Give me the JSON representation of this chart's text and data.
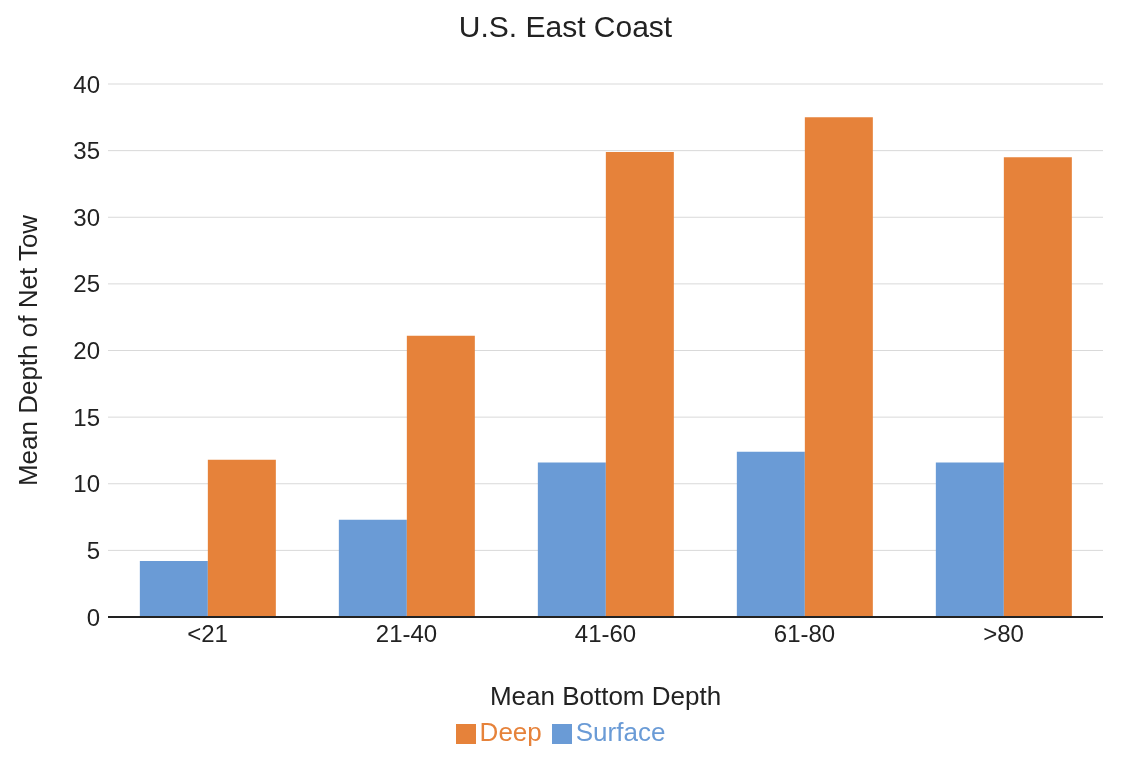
{
  "chart_data": {
    "type": "bar",
    "title": "U.S. East Coast",
    "xlabel": "Mean Bottom Depth",
    "ylabel": "Mean Depth of Net Tow",
    "categories": [
      "<21",
      "21-40",
      "41-60",
      "61-80",
      ">80"
    ],
    "series": [
      {
        "name": "Surface",
        "color": "#6a9bd6",
        "values": [
          4.2,
          7.3,
          11.6,
          12.4,
          11.6
        ]
      },
      {
        "name": "Deep",
        "color": "#e6823a",
        "values": [
          11.8,
          21.1,
          34.9,
          37.5,
          34.5
        ]
      }
    ],
    "ylim": [
      0,
      40
    ],
    "yticks": [
      0,
      5,
      10,
      15,
      20,
      25,
      30,
      35,
      40
    ],
    "grid": "y",
    "legend": "bottom"
  }
}
